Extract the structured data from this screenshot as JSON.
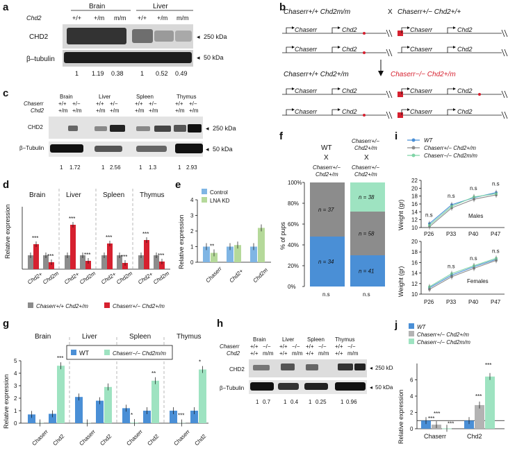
{
  "panels": {
    "a": {
      "label": "a",
      "genotype_row_label": "Chd2",
      "tissues": [
        "Brain",
        "Liver"
      ],
      "genotypes": [
        "+/+",
        "+/m",
        "m/m",
        "+/+",
        "+/m",
        "m/m"
      ],
      "bands": [
        {
          "name": "CHD2",
          "marker": "250 kDa"
        },
        {
          "name": "β–tubulin",
          "marker": "50 kDa"
        }
      ],
      "quant": [
        "1",
        "1.19",
        "0.38",
        "1",
        "0.52",
        "0.49"
      ]
    },
    "b": {
      "label": "b",
      "cross_left": "Chaserr+/+ Chd2m/m",
      "cross_x": "X",
      "cross_right": "Chaserr+/− Chd2+/+",
      "gene1": "Chaserr",
      "gene2": "Chd2",
      "offspring_left": "Chaserr+/+ Chd2+/m",
      "offspring_right": "Chaserr−/− Chd2+/m"
    },
    "c": {
      "label": "c",
      "tissues": [
        "Brain",
        "Liver",
        "Spleen",
        "Thymus"
      ],
      "row1_label": "Chaserr",
      "row2_label": "Chd2",
      "row1_values": [
        "+/+",
        "+/−",
        "+/+",
        "+/−",
        "+/+",
        "+/−",
        "+/+",
        "+/−"
      ],
      "row2_values": [
        "+/m",
        "+/m",
        "+/m",
        "+/m",
        "+/m",
        "+/m",
        "+/m",
        "+/m"
      ],
      "bands": [
        {
          "name": "CHD2",
          "marker": "250 kDa"
        },
        {
          "name": "β−Tubulin",
          "marker": "50 kDa"
        }
      ],
      "quant": [
        "1",
        "1.72",
        "1",
        "2.56",
        "1",
        "1.3",
        "1",
        "2.93"
      ]
    },
    "d": {
      "label": "d",
      "tissues": [
        "Brain",
        "Liver",
        "Spleen",
        "Thymus"
      ],
      "xticks": [
        "Chd2+",
        "Chd2m"
      ],
      "ylabel": "Relative expression",
      "legend": [
        "Chaserr+/+ Chd2+/m",
        "Chaserr+/− Chd2+/m"
      ],
      "stars": "***"
    },
    "e": {
      "label": "e",
      "legend": [
        "Control",
        "LNA KD"
      ],
      "ylabel": "Relative expression",
      "xticks": [
        "Chaserr",
        "Chd2+",
        "Chd2m"
      ],
      "yticks": [
        "0",
        "1",
        "2",
        "3",
        "4"
      ],
      "stars": "**"
    },
    "f": {
      "label": "f",
      "ylabel": "% of pups",
      "yticks": [
        "0%",
        "20%",
        "40%",
        "60%",
        "80%",
        "100%"
      ],
      "col1_header": [
        "WT",
        "X",
        "Chaserr+/−",
        "Chd2+/m"
      ],
      "col2_header": [
        "Chaserr+/−",
        "Chd2+/m",
        "X",
        "Chaserr+/−",
        "Chd2+/m"
      ],
      "col1_counts": [
        "n = 37",
        "n = 34"
      ],
      "col2_counts": [
        "n = 38",
        "n = 58",
        "n = 41"
      ],
      "ns": "n.s"
    },
    "g": {
      "label": "g",
      "tissues": [
        "Brain",
        "Liver",
        "Spleen",
        "Thymus"
      ],
      "legend": [
        "WT",
        "Chaserr−/− Chd2m/m"
      ],
      "ylabel": "Relative expression",
      "yticks": [
        "0",
        "1",
        "2",
        "3",
        "4",
        "5"
      ],
      "xticks": [
        "Chaserr",
        "Chd2"
      ],
      "stars": [
        "***",
        "*",
        "**",
        "*",
        "***"
      ]
    },
    "h": {
      "label": "h",
      "tissues": [
        "Brain",
        "Liver",
        "Spleen",
        "Thymus"
      ],
      "row1_label": "Chaserr",
      "row2_label": "Chd2",
      "row1_values": [
        "+/+",
        "−/−",
        "+/+",
        "−/−",
        "+/+",
        "−/−",
        "+/+",
        "−/−"
      ],
      "row2_values": [
        "+/+",
        "m/m",
        "+/+",
        "m/m",
        "+/+",
        "m/m",
        "+/+",
        "m/m"
      ],
      "bands": [
        {
          "name": "CHD2",
          "marker": "250 kDa"
        },
        {
          "name": "β−Tubulin",
          "marker": "50 kDa"
        }
      ],
      "quant": [
        "1",
        "0.7",
        "1",
        "0.4",
        "1",
        "0.25",
        "1",
        "0.96"
      ]
    },
    "i": {
      "label": "i",
      "legend": [
        "WT",
        "Chaserr+/− Chd2+/m",
        "Chaserr−/− Chd2m/m"
      ],
      "ylabel": "Weight (gr)",
      "xticks": [
        "P26",
        "P33",
        "P40",
        "P47"
      ],
      "males_label": "Males",
      "females_label": "Females",
      "yticks_males": [
        "10",
        "12",
        "14",
        "16",
        "18",
        "20",
        "22"
      ],
      "yticks_females": [
        "10",
        "12",
        "14",
        "16",
        "18",
        "20"
      ],
      "ns": "n.s"
    },
    "j": {
      "label": "j",
      "legend": [
        "WT",
        "Chaserr+/− Chd2+/m",
        "Chaserr−/− Chd2m/m"
      ],
      "ylabel": "Relative expression",
      "yticks": [
        "0",
        "2",
        "4",
        "6"
      ],
      "xticks": [
        "Chaserr",
        "Chd2"
      ],
      "stars": "***"
    }
  },
  "colors": {
    "blue": "#4a8fd6",
    "red": "#d6202f",
    "grey": "#8c8c8c",
    "green": "#9ee3c1",
    "lightblue": "#7fb5e4",
    "lightgreen": "#b5d99a",
    "lightgrey": "#b3b3b3"
  },
  "chart_data": [
    {
      "panel": "e",
      "type": "bar",
      "categories": [
        "Chaserr",
        "Chd2+",
        "Chd2m"
      ],
      "series": [
        {
          "name": "Control",
          "values": [
            1.0,
            1.0,
            1.0
          ]
        },
        {
          "name": "LNA KD",
          "values": [
            0.6,
            1.1,
            2.2
          ]
        }
      ],
      "ylabel": "Relative expression",
      "ylim": [
        0,
        4
      ]
    },
    {
      "panel": "f",
      "type": "bar",
      "categories": [
        "WT x Chaserr+/− Chd2+/m",
        "Chaserr+/− Chd2+/m x Chaserr+/− Chd2+/m"
      ],
      "series": [
        {
          "values": [
            48,
            30
          ]
        },
        {
          "values": [
            52,
            42
          ]
        },
        {
          "values": [
            0,
            28
          ]
        }
      ],
      "ylabel": "% of pups",
      "ylim": [
        0,
        100
      ]
    },
    {
      "panel": "g",
      "type": "bar",
      "categories": [
        "Brain Chaserr",
        "Brain Chd2",
        "Liver Chaserr",
        "Liver Chd2",
        "Spleen Chaserr",
        "Spleen Chd2",
        "Thymus Chaserr",
        "Thymus Chd2"
      ],
      "series": [
        {
          "name": "WT",
          "values": [
            0.7,
            0.75,
            2.1,
            1.8,
            1.2,
            1.0,
            1.0,
            1.0
          ]
        },
        {
          "name": "Chaserr−/− Chd2m/m",
          "values": [
            0.02,
            4.6,
            0.02,
            2.9,
            0.05,
            3.4,
            0.02,
            4.3
          ]
        }
      ],
      "ylabel": "Relative expression",
      "ylim": [
        0,
        5
      ]
    },
    {
      "panel": "i-males",
      "type": "line",
      "x": [
        "P26",
        "P33",
        "P40",
        "P47"
      ],
      "series": [
        {
          "name": "WT",
          "values": [
            11.0,
            15.8,
            17.6,
            18.9
          ]
        },
        {
          "name": "Chaserr+/− Chd2+/m",
          "values": [
            10.2,
            15.0,
            17.2,
            18.3
          ]
        },
        {
          "name": "Chaserr−/− Chd2m/m",
          "values": [
            10.6,
            15.4,
            17.8,
            18.6
          ]
        }
      ],
      "ylabel": "Weight (gr)",
      "ylim": [
        10,
        22
      ]
    },
    {
      "panel": "i-females",
      "type": "line",
      "x": [
        "P26",
        "P33",
        "P40",
        "P47"
      ],
      "series": [
        {
          "name": "WT",
          "values": [
            11.2,
            13.6,
            15.2,
            16.6
          ]
        },
        {
          "name": "Chaserr+/− Chd2+/m",
          "values": [
            10.9,
            13.3,
            14.9,
            16.4
          ]
        },
        {
          "name": "Chaserr−/− Chd2m/m",
          "values": [
            11.4,
            13.9,
            15.4,
            16.8
          ]
        }
      ],
      "ylabel": "Weight (gr)",
      "ylim": [
        10,
        20
      ]
    },
    {
      "panel": "j",
      "type": "bar",
      "categories": [
        "Chaserr",
        "Chd2"
      ],
      "series": [
        {
          "name": "WT",
          "values": [
            1.0,
            1.0
          ]
        },
        {
          "name": "Chaserr+/− Chd2+/m",
          "values": [
            0.5,
            2.9
          ]
        },
        {
          "name": "Chaserr−/− Chd2m/m",
          "values": [
            0.05,
            6.4
          ]
        }
      ],
      "ylabel": "Relative expression",
      "ylim": [
        0,
        8
      ]
    }
  ]
}
